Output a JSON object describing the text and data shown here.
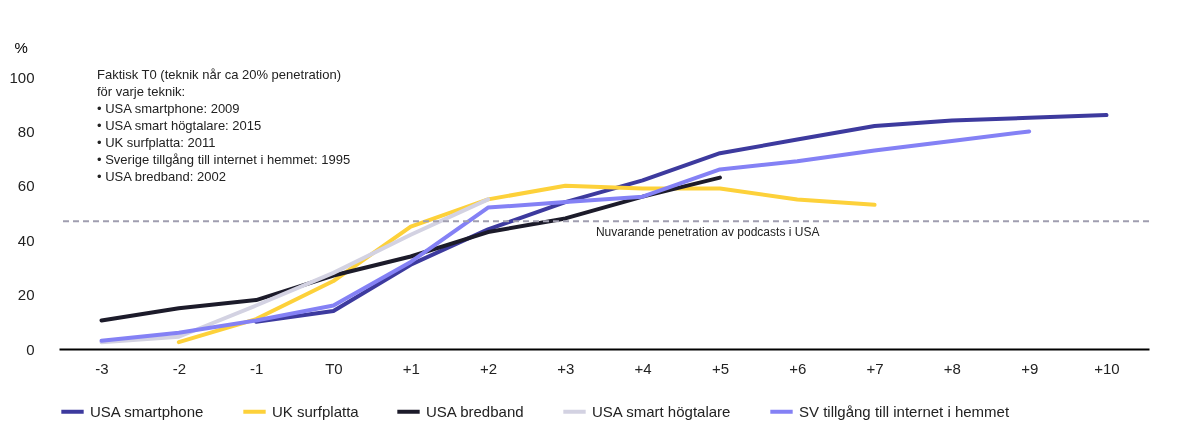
{
  "chart_data": {
    "type": "line",
    "ylabel": "%",
    "categories": [
      "-3",
      "-2",
      "-1",
      "T0",
      "+1",
      "+2",
      "+3",
      "+4",
      "+5",
      "+6",
      "+7",
      "+8",
      "+9",
      "+10"
    ],
    "ylim": [
      0,
      100
    ],
    "yticks": [
      0,
      20,
      40,
      60,
      80,
      100
    ],
    "grid": false,
    "legend": "bottom",
    "marker": "none",
    "line_style": "solid",
    "series": [
      {
        "name": "USA smartphone",
        "color": "#3d3a9e",
        "values": [
          null,
          null,
          10,
          14,
          31,
          44,
          54,
          62,
          72,
          77,
          82,
          84,
          85,
          86
        ]
      },
      {
        "name": "UK surfplatta",
        "color": "#fdd13a",
        "values": [
          null,
          2.5,
          11,
          25,
          45,
          55,
          60,
          59,
          59,
          55,
          53,
          null,
          null,
          null
        ]
      },
      {
        "name": "USA bredband",
        "color": "#1c1b2a",
        "values": [
          10.5,
          15,
          18,
          27,
          34,
          43,
          48,
          56,
          63,
          null,
          null,
          null,
          null,
          null
        ]
      },
      {
        "name": "USA smart högtalare",
        "color": "#d3d2e2",
        "values": [
          2.5,
          4.5,
          16,
          28,
          42,
          55,
          null,
          null,
          null,
          null,
          null,
          null,
          null,
          null
        ]
      },
      {
        "name": "SV tillgång till internet i hemmet",
        "color": "#8481f5",
        "values": [
          3,
          6,
          10.5,
          16,
          32,
          52,
          54,
          56,
          66,
          69,
          73,
          76.5,
          80,
          null
        ]
      }
    ],
    "ref_lines": [
      {
        "axis": "y",
        "value": 47,
        "label": "Nuvarande penetration av podcasts i USA",
        "color": "#a09eb0",
        "line_style": "dashed"
      }
    ],
    "annotations": [
      "Faktisk T0 (teknik når ca 20% penetration)\nför varje teknik:\n• USA smartphone: 2009\n• USA smart högtalare: 2015\n• UK surfplatta: 2011\n• Sverige tillgång till internet i hemmet: 1995\n• USA bredband: 2002"
    ]
  }
}
